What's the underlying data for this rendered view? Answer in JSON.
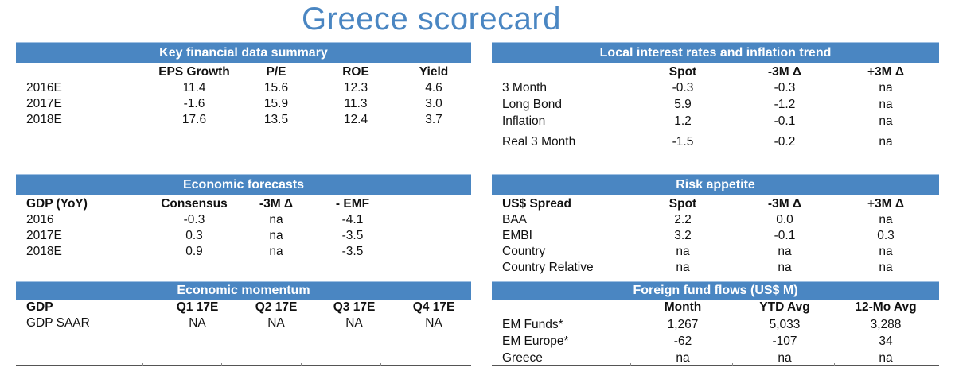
{
  "title": "Greece scorecard",
  "kfd": {
    "header": "Key financial data summary",
    "cols": [
      "EPS Growth",
      "P/E",
      "ROE",
      "Yield"
    ],
    "rows": [
      {
        "label": "2016E",
        "v": [
          "11.4",
          "15.6",
          "12.3",
          "4.6"
        ]
      },
      {
        "label": "2017E",
        "v": [
          "-1.6",
          "15.9",
          "11.3",
          "3.0"
        ]
      },
      {
        "label": "2018E",
        "v": [
          "17.6",
          "13.5",
          "12.4",
          "3.7"
        ]
      }
    ]
  },
  "lir": {
    "header": "Local interest rates and inflation trend",
    "cols": [
      "Spot",
      "-3M Δ",
      "+3M Δ"
    ],
    "rows": [
      {
        "label": "3 Month",
        "v": [
          "-0.3",
          "-0.3",
          "na"
        ]
      },
      {
        "label": "Long Bond",
        "v": [
          "5.9",
          "-1.2",
          "na"
        ]
      },
      {
        "label": "Inflation",
        "v": [
          "1.2",
          "-0.1",
          "na"
        ]
      },
      {
        "label": "Real 3 Month",
        "v": [
          "-1.5",
          "-0.2",
          "na"
        ]
      }
    ]
  },
  "eco": {
    "header": "Economic forecasts",
    "corner": "GDP (YoY)",
    "cols": [
      "Consensus",
      "-3M Δ",
      "- EMF"
    ],
    "rows": [
      {
        "label": "2016",
        "v": [
          "-0.3",
          "na",
          "-4.1"
        ]
      },
      {
        "label": "2017E",
        "v": [
          "0.3",
          "na",
          "-3.5"
        ]
      },
      {
        "label": "2018E",
        "v": [
          "0.9",
          "na",
          "-3.5"
        ]
      }
    ]
  },
  "risk": {
    "header": "Risk appetite",
    "corner": "US$ Spread",
    "cols": [
      "Spot",
      "-3M Δ",
      "+3M Δ"
    ],
    "rows": [
      {
        "label": "BAA",
        "v": [
          "2.2",
          "0.0",
          "na"
        ]
      },
      {
        "label": "EMBI",
        "v": [
          "3.2",
          "-0.1",
          "0.3"
        ]
      },
      {
        "label": "Country",
        "v": [
          "na",
          "na",
          "na"
        ]
      },
      {
        "label": "Country Relative",
        "v": [
          "na",
          "na",
          "na"
        ]
      }
    ]
  },
  "mom": {
    "header": "Economic momentum",
    "corner": "GDP",
    "cols": [
      "Q1 17E",
      "Q2 17E",
      "Q3 17E",
      "Q4 17E"
    ],
    "rows": [
      {
        "label": "GDP SAAR",
        "v": [
          "NA",
          "NA",
          "NA",
          "NA"
        ]
      }
    ]
  },
  "flows": {
    "header": "Foreign fund flows (US$ M)",
    "cols": [
      "Month",
      "YTD Avg",
      "12-Mo Avg"
    ],
    "rows": [
      {
        "label": "EM Funds*",
        "v": [
          "1,267",
          "5,033",
          "3,288"
        ]
      },
      {
        "label": "EM Europe*",
        "v": [
          "-62",
          "-107",
          "34"
        ]
      },
      {
        "label": "Greece",
        "v": [
          "na",
          "na",
          "na"
        ]
      }
    ]
  }
}
